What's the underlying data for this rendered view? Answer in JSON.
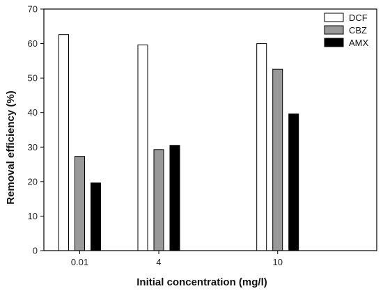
{
  "chart_data": {
    "type": "bar",
    "title": "",
    "xlabel": "Initial concentration (mg/l)",
    "ylabel": "Removal efficiency (%)",
    "categories": [
      "0.01",
      "4",
      "10"
    ],
    "x": [
      0.01,
      4,
      10
    ],
    "series": [
      {
        "name": "DCF",
        "values": [
          62.6,
          59.6,
          60.0
        ],
        "color": "#ffffff"
      },
      {
        "name": "CBZ",
        "values": [
          27.3,
          29.3,
          52.6
        ],
        "color": "#999999"
      },
      {
        "name": "AMX",
        "values": [
          19.6,
          30.5,
          39.6
        ],
        "color": "#000000"
      }
    ],
    "ylim": [
      0,
      70
    ],
    "yticks": [
      0,
      10,
      20,
      30,
      40,
      50,
      60,
      70
    ],
    "grid": false,
    "legend": "top-right"
  }
}
